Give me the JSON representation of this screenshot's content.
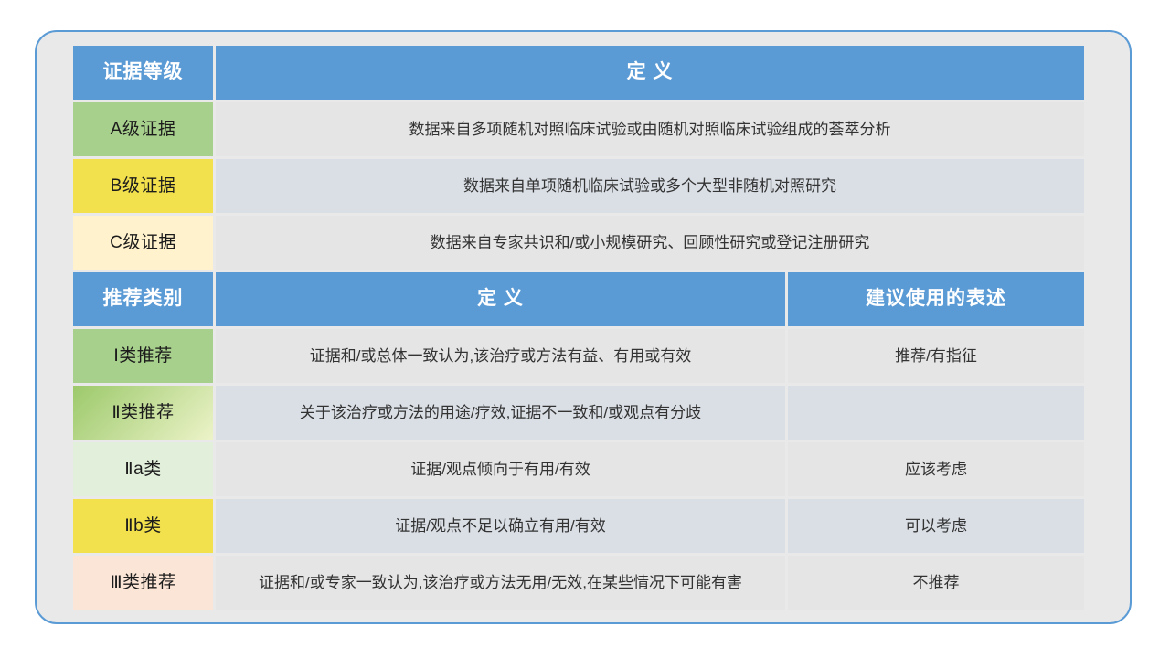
{
  "card": {
    "border_color": "#5b9bd5",
    "background": "#e9e9ea"
  },
  "colors": {
    "header_blue": "#5b9bd5",
    "header_text": "#ffffff",
    "green": "#a8d08d",
    "yellow": "#f2e14c",
    "cream": "#fff2cc",
    "green_gradient": "linear-gradient(135deg,#9cc96b 0%,#ecf3c8 100%)",
    "light_green": "#e2efda",
    "peach": "#fbe5d6",
    "def_gray": "#e5e5e5",
    "def_bluegray": "#dadfe6"
  },
  "evidence_section": {
    "header": {
      "level": "证据等级",
      "definition": "定 义",
      "bg": "#5b9bd5"
    },
    "rows": [
      {
        "label": "A级证据",
        "definition": "数据来自多项随机对照临床试验或由随机对照临床试验组成的荟萃分析",
        "label_bg": "#a8d08d",
        "def_bg": "#e5e5e5"
      },
      {
        "label": "B级证据",
        "definition": "数据来自单项随机临床试验或多个大型非随机对照研究",
        "label_bg": "#f2e14c",
        "def_bg": "#dadfe6"
      },
      {
        "label": "C级证据",
        "definition": "数据来自专家共识和/或小规模研究、回顾性研究或登记注册研究",
        "label_bg": "#fff2cc",
        "def_bg": "#e5e5e5"
      }
    ]
  },
  "recommendation_section": {
    "header": {
      "category": "推荐类别",
      "definition": "定 义",
      "expression": "建议使用的表述",
      "bg": "#5b9bd5"
    },
    "rows": [
      {
        "label": "Ⅰ类推荐",
        "definition": "证据和/或总体一致认为,该治疗或方法有益、有用或有效",
        "expression": "推荐/有指征",
        "label_bg": "#a8d08d",
        "def_bg": "#e5e5e5"
      },
      {
        "label": "Ⅱ类推荐",
        "definition": "关于该治疗或方法的用途/疗效,证据不一致和/或观点有分歧",
        "expression": "",
        "label_bg": "linear-gradient(135deg,#9cc96b 0%,#ecf3c8 100%)",
        "def_bg": "#dadfe6"
      },
      {
        "label": "Ⅱa类",
        "definition": "证据/观点倾向于有用/有效",
        "expression": "应该考虑",
        "label_bg": "#e2efda",
        "def_bg": "#e5e5e5"
      },
      {
        "label": "Ⅱb类",
        "definition": "证据/观点不足以确立有用/有效",
        "expression": "可以考虑",
        "label_bg": "#f2e14c",
        "def_bg": "#dadfe6"
      },
      {
        "label": "Ⅲ类推荐",
        "definition": "证据和/或专家一致认为,该治疗或方法无用/无效,在某些情况下可能有害",
        "expression": "不推荐",
        "label_bg": "#fbe5d6",
        "def_bg": "#e5e5e5"
      }
    ]
  }
}
